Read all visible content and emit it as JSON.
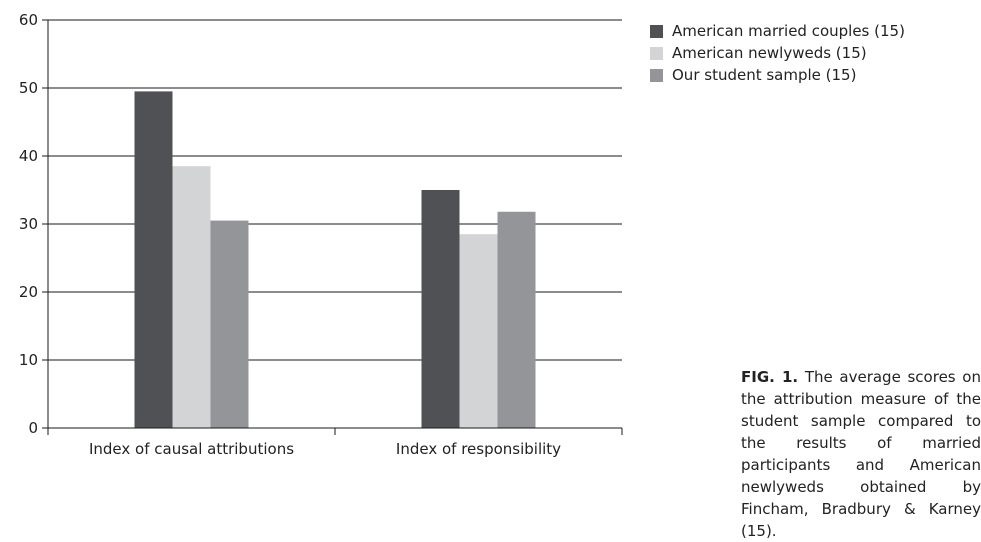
{
  "chart_data": {
    "type": "bar",
    "categories": [
      "Index of causal attributions",
      "Index of responsibility"
    ],
    "series": [
      {
        "name": "American married couples (15)",
        "color": "#505154",
        "values": [
          49.5,
          35
        ]
      },
      {
        "name": "American newlyweds (15)",
        "color": "#d3d4d6",
        "values": [
          38.5,
          28.5
        ]
      },
      {
        "name": "Our student sample (15)",
        "color": "#949599",
        "values": [
          30.5,
          31.8
        ]
      }
    ],
    "ylim": [
      0,
      60
    ],
    "yticks": [
      0,
      10,
      20,
      30,
      40,
      50,
      60
    ],
    "grid": true,
    "legend_position": "top-right"
  },
  "caption": {
    "tag": "FIG. 1.",
    "text": "The average scores on the attribution measure of the student sample compared to the results of married participants and American newlyweds obtained by Fincham, Bradbury & Karney (15)."
  }
}
